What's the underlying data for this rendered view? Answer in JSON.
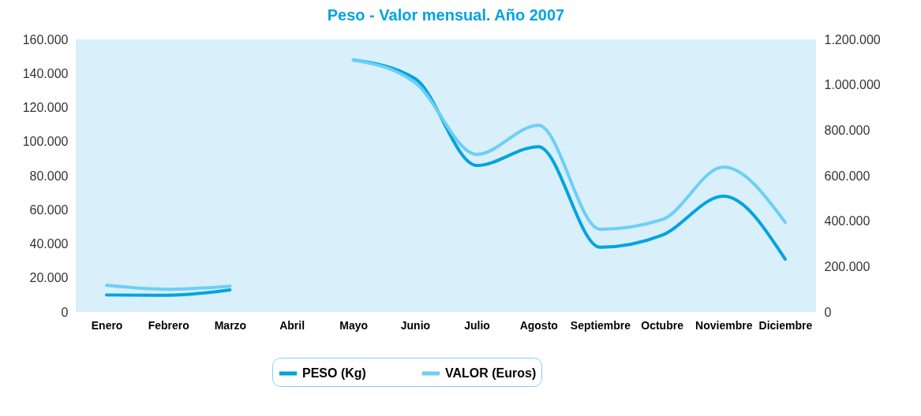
{
  "chart_data": {
    "type": "line",
    "title": "Peso - Valor mensual. Año 2007",
    "categories": [
      "Enero",
      "Febrero",
      "Marzo",
      "Abril",
      "Mayo",
      "Junio",
      "Julio",
      "Agosto",
      "Septiembre",
      "Octubre",
      "Noviembre",
      "Diciembre"
    ],
    "series": [
      {
        "name": "PESO (Kg)",
        "color": "#00a3e0",
        "values": [
          10000,
          9800,
          13000,
          null,
          148000,
          137000,
          86000,
          97000,
          38000,
          45000,
          68000,
          31000
        ]
      },
      {
        "name": "VALOR (Euros)",
        "color": "#6ccff6",
        "axis": "y2",
        "values": [
          118000,
          100000,
          114000,
          null,
          1110000,
          1010000,
          694000,
          822000,
          364000,
          406000,
          638000,
          395000
        ]
      }
    ],
    "ylim": [
      0,
      160000
    ],
    "yticks": [
      {
        "value": 0,
        "label": "0"
      },
      {
        "value": 20000,
        "label": "20.000"
      },
      {
        "value": 40000,
        "label": "40.000"
      },
      {
        "value": 60000,
        "label": "60.000"
      },
      {
        "value": 80000,
        "label": "80.000"
      },
      {
        "value": 100000,
        "label": "100.000"
      },
      {
        "value": 120000,
        "label": "120.000"
      },
      {
        "value": 140000,
        "label": "140.000"
      },
      {
        "value": 160000,
        "label": "160.000"
      }
    ],
    "y2lim": [
      0,
      1200000
    ],
    "y2ticks": [
      {
        "value": 0,
        "label": "0"
      },
      {
        "value": 200000,
        "label": "200.000"
      },
      {
        "value": 400000,
        "label": "400.000"
      },
      {
        "value": 600000,
        "label": "600.000"
      },
      {
        "value": 800000,
        "label": "800.000"
      },
      {
        "value": 1000000,
        "label": "1.000.000"
      },
      {
        "value": 1200000,
        "label": "1.200.000"
      }
    ],
    "grid": false,
    "legend": "bottom",
    "marker": "none",
    "line_style": "solid"
  }
}
